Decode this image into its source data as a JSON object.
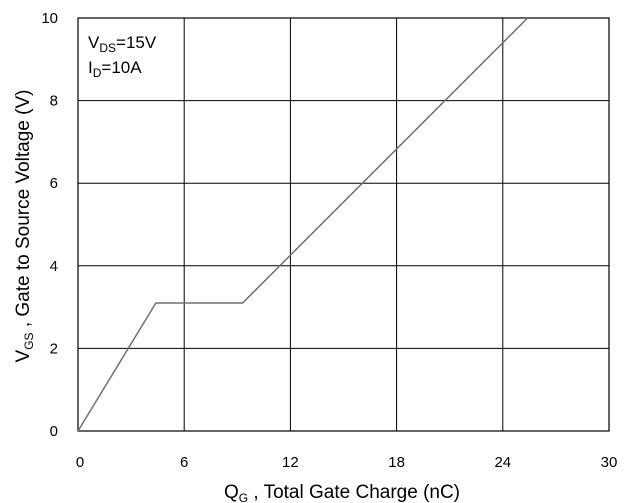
{
  "chart_data": {
    "type": "line",
    "title": "",
    "xlabel": {
      "main": "Q",
      "sub": "G",
      "rest": " , Total Gate Charge (nC)"
    },
    "ylabel": {
      "main": "V",
      "sub": "GS",
      "rest": " , Gate to Source Voltage (V)"
    },
    "xlim": [
      0,
      30
    ],
    "ylim": [
      0,
      10
    ],
    "x_ticks": [
      0,
      6,
      12,
      18,
      24,
      30
    ],
    "y_ticks": [
      0,
      2,
      4,
      6,
      8,
      10
    ],
    "grid": true,
    "series": [
      {
        "x": [
          0,
          4.4,
          9.3,
          25.4
        ],
        "y": [
          0,
          3.1,
          3.1,
          10
        ]
      }
    ],
    "annotations": [
      {
        "main": "V",
        "sub": "DS",
        "rest": "=15V"
      },
      {
        "main": "I",
        "sub": "D",
        "rest": "=10A"
      }
    ],
    "colors": {
      "line": "#707070",
      "grid": "#000000",
      "frame": "#000000"
    }
  }
}
